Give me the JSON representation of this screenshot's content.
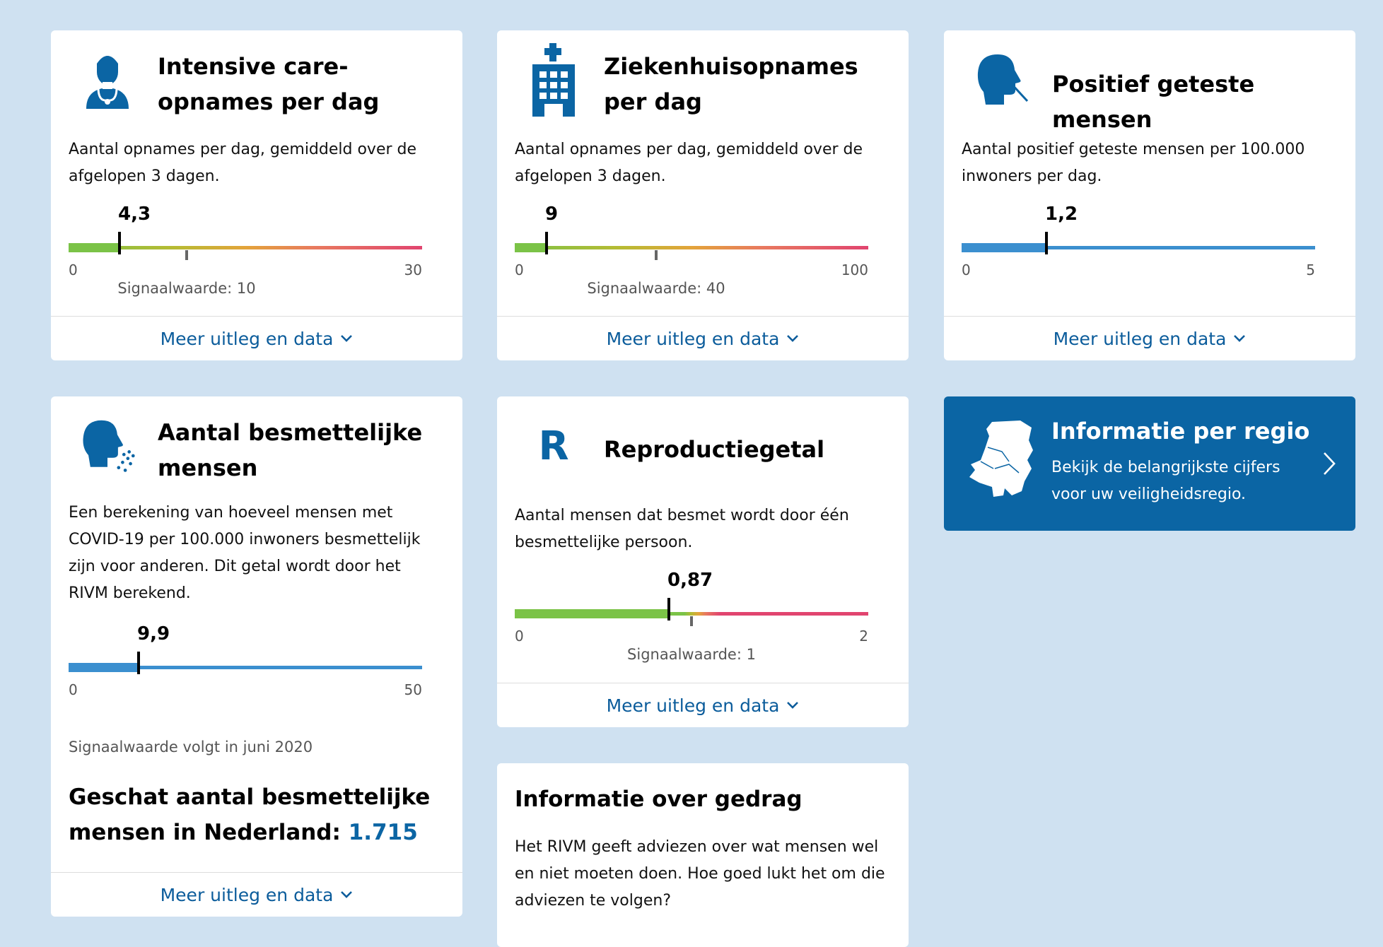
{
  "colors": {
    "background": "#cfe1f1",
    "accent_blue": "#0b5c9b",
    "region_bg": "#0b65a4",
    "bar_blue": "#3b8fcf",
    "green": "#7bc347",
    "red": "#e1446f"
  },
  "cards": {
    "ic": {
      "icon": "doctor-icon",
      "title": "Intensive care-opnames per dag",
      "desc": "Aantal opnames per dag, gemiddeld over de afgelopen 3 dagen.",
      "value_label": "4,3",
      "value": 4.3,
      "min": "0",
      "max": "30",
      "max_num": 30,
      "signal": "Signaalwaarde: 10",
      "signal_num": 10,
      "footer": "Meer uitleg en data"
    },
    "hospital": {
      "icon": "hospital-icon",
      "title": "Ziekenhuisopnames per dag",
      "desc": "Aantal opnames per dag, gemiddeld over de afgelopen 3 dagen.",
      "value_label": "9",
      "value": 9,
      "min": "0",
      "max": "100",
      "max_num": 100,
      "signal": "Signaalwaarde: 40",
      "signal_num": 40,
      "footer": "Meer uitleg en data"
    },
    "positive": {
      "icon": "swab-test-icon",
      "title": "Positief geteste mensen",
      "desc": "Aantal positief geteste mensen per 100.000 inwoners per dag.",
      "value_label": "1,2",
      "value": 1.2,
      "min": "0",
      "max": "5",
      "max_num": 5,
      "footer": "Meer uitleg en data"
    },
    "infectious": {
      "icon": "sneeze-icon",
      "title": "Aantal besmettelijke mensen",
      "desc": "Een berekening van hoeveel mensen met COVID-19 per 100.000 inwoners besmettelijk zijn voor anderen. Dit getal wordt door het RIVM berekend.",
      "value_label": "9,9",
      "value": 9.9,
      "min": "0",
      "max": "50",
      "max_num": 50,
      "signal_note": "Signaalwaarde volgt in juni 2020",
      "estimate_label": "Geschat aantal besmettelijke mensen in Nederland:",
      "estimate_value": "1.715",
      "footer": "Meer uitleg en data"
    },
    "reproduction": {
      "icon_letter": "R",
      "title": "Reproductiegetal",
      "desc": "Aantal mensen dat besmet wordt door één besmettelijke persoon.",
      "value_label": "0,87",
      "value": 0.87,
      "min": "0",
      "max": "2",
      "max_num": 2,
      "signal": "Signaalwaarde: 1",
      "signal_num": 1,
      "footer": "Meer uitleg en data"
    },
    "region": {
      "icon": "netherlands-map-icon",
      "title": "Informatie per regio",
      "desc": "Bekijk de belangrijkste cijfers voor uw veiligheidsregio."
    },
    "behaviour": {
      "title": "Informatie over gedrag",
      "desc": "Het RIVM geeft adviezen over wat mensen wel en niet moeten doen. Hoe goed lukt het om die adviezen te volgen?"
    }
  }
}
